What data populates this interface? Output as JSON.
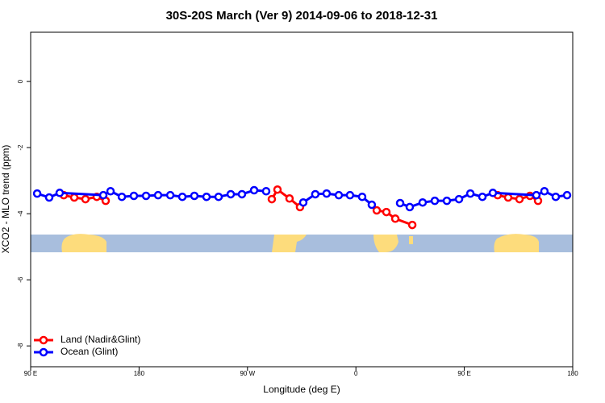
{
  "chart_data": {
    "type": "line",
    "title": "30S-20S March (Ver 9)   2014-09-06 to 2018-12-31",
    "x_label": "Longitude (deg E)",
    "y_label": "XCO2 - MLO trend (ppm)",
    "xlim": [
      90,
      540
    ],
    "xticks": [
      {
        "value": 90,
        "label": "90 E"
      },
      180,
      {
        "value": 270,
        "label": "90 W"
      },
      {
        "value": 360,
        "label": "0"
      },
      {
        "value": 450,
        "label": "90 E"
      },
      {
        "value": 540,
        "label": "180"
      }
    ],
    "ylim": [
      -8.63,
      1.49
    ],
    "yticks": [
      0,
      -2,
      -4,
      -6,
      -8
    ],
    "legend": "bottom-left",
    "series": [
      {
        "name": "Land (Nadir&Glint)",
        "color": "#ff0000",
        "x": [
          117.5,
          126.2,
          135.5,
          144.9,
          152.3,
          null,
          290.2,
          294.9,
          304.9,
          313.6,
          null,
          377.3,
          385.3,
          392.7,
          406.8,
          null,
          477.7,
          486.4,
          495.8,
          504.5,
          511.2
        ],
        "values": [
          -3.44,
          -3.51,
          -3.56,
          -3.49,
          -3.61,
          null,
          -3.56,
          -3.27,
          -3.54,
          -3.8,
          null,
          -3.9,
          -3.95,
          -4.15,
          -4.34,
          null,
          -3.44,
          -3.51,
          -3.56,
          -3.46,
          -3.61
        ]
      },
      {
        "name": "Ocean (Glint)",
        "color": "#0000ff",
        "x": [
          95.4,
          105.4,
          114.1,
          150.3,
          156.3,
          165.7,
          175.7,
          185.8,
          195.8,
          205.9,
          215.9,
          225.9,
          236.0,
          246.0,
          256.1,
          265.4,
          275.5,
          285.5,
          null,
          316.3,
          326.3,
          335.7,
          345.8,
          355.1,
          365.2,
          373.2,
          null,
          396.7,
          404.7,
          415.4,
          425.5,
          435.5,
          445.6,
          455.0,
          465.0,
          473.7,
          509.8,
          516.5,
          525.9,
          535.3
        ],
        "values": [
          -3.39,
          -3.51,
          -3.37,
          -3.44,
          -3.32,
          -3.49,
          -3.46,
          -3.46,
          -3.44,
          -3.44,
          -3.49,
          -3.46,
          -3.49,
          -3.49,
          -3.41,
          -3.41,
          -3.29,
          -3.32,
          null,
          -3.66,
          -3.41,
          -3.39,
          -3.44,
          -3.44,
          -3.49,
          -3.73,
          null,
          -3.68,
          -3.8,
          -3.66,
          -3.61,
          -3.61,
          -3.56,
          -3.39,
          -3.49,
          -3.37,
          -3.44,
          -3.32,
          -3.49,
          -3.44
        ]
      }
    ]
  }
}
